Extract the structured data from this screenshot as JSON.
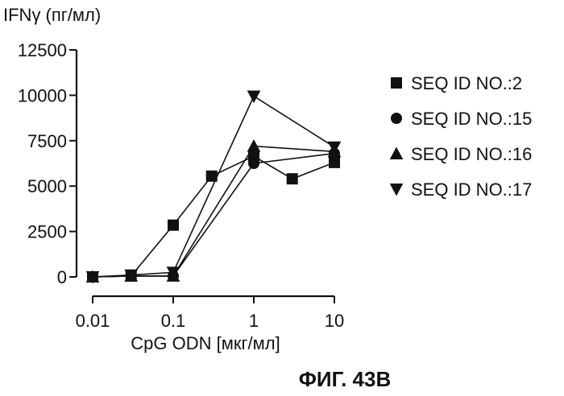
{
  "chart_data": {
    "type": "line",
    "ylabel": "IFNγ (пг/мл)",
    "xlabel": "CpG ODN [мкг/мл]",
    "x_scale": "log",
    "xlim": [
      0.01,
      10
    ],
    "ylim": [
      0,
      12500
    ],
    "x_ticks": [
      0.01,
      0.1,
      1,
      10
    ],
    "x_tick_labels": [
      "0.01",
      "0.1",
      "1",
      "10"
    ],
    "y_ticks": [
      0,
      2500,
      5000,
      7500,
      10000,
      12500
    ],
    "y_tick_labels": [
      "0",
      "2500",
      "5000",
      "7500",
      "10000",
      "12500"
    ],
    "legend_position": "right",
    "series": [
      {
        "name": "SEQ ID NO.:2",
        "marker": "square",
        "x": [
          0.01,
          0.03,
          0.1,
          0.3,
          1,
          3,
          10
        ],
        "y": [
          0,
          50,
          2850,
          5550,
          6650,
          5400,
          6300
        ]
      },
      {
        "name": "SEQ ID NO.:15",
        "marker": "circle",
        "x": [
          0.01,
          0.03,
          0.1,
          1,
          10
        ],
        "y": [
          0,
          50,
          50,
          6250,
          6800
        ]
      },
      {
        "name": "SEQ ID NO.:16",
        "marker": "triangle-up",
        "x": [
          0.01,
          0.03,
          0.1,
          1,
          10
        ],
        "y": [
          0,
          50,
          50,
          7200,
          6900
        ]
      },
      {
        "name": "SEQ ID NO.:17",
        "marker": "triangle-down",
        "x": [
          0.01,
          0.03,
          0.1,
          1,
          10
        ],
        "y": [
          0,
          100,
          250,
          9950,
          7150
        ]
      }
    ]
  },
  "caption": "ФИГ. 43B"
}
